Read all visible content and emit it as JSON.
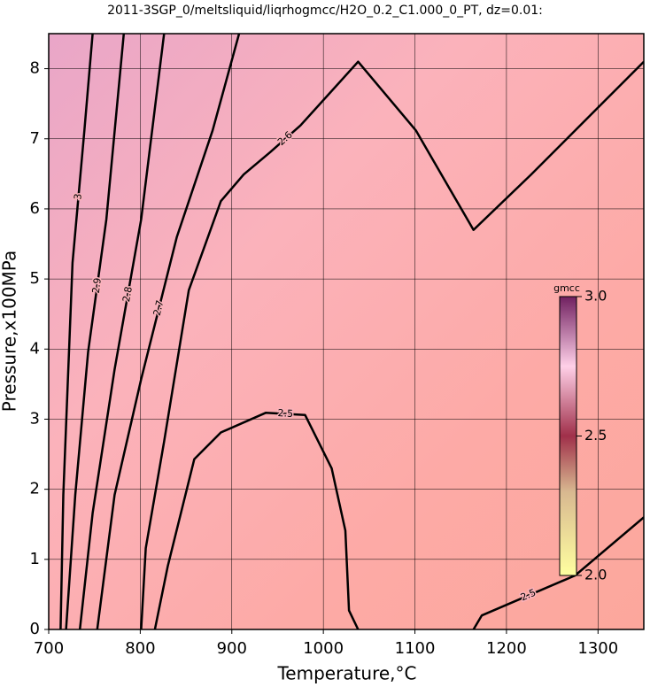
{
  "chart_data": {
    "type": "contour",
    "title": "2011-3SGP_0/meltsliquid/liqrhogmcc/H2O_0.2_C1.000_0_PT, dz=0.01:",
    "xlabel": "Temperature,°C",
    "ylabel": "Pressure,x100MPa",
    "xlim": [
      700,
      1350
    ],
    "ylim": [
      0,
      8.5
    ],
    "xticks": [
      700,
      800,
      900,
      1000,
      1100,
      1200,
      1300
    ],
    "yticks": [
      0,
      1,
      2,
      3,
      4,
      5,
      6,
      7,
      8
    ],
    "grid": true,
    "series": [
      {
        "name": "2.5",
        "color": "#000000",
        "x": [
          816,
          830,
          859,
          888,
          937,
          980,
          1009,
          1024,
          1028,
          1038
        ],
        "y": [
          0,
          0.9,
          2.43,
          2.81,
          3.09,
          3.06,
          2.3,
          1.41,
          0.27,
          0
        ]
      },
      {
        "name": "2.5",
        "color": "#000000",
        "x": [
          1164,
          1173,
          1275,
          1350
        ],
        "y": [
          0,
          0.2,
          0.77,
          1.6
        ]
      },
      {
        "name": "2.6",
        "color": "#000000",
        "x": [
          801,
          806,
          826,
          853,
          888,
          913,
          942,
          975,
          1038,
          1101,
          1164,
          1227,
          1350
        ],
        "y": [
          0,
          1.16,
          2.68,
          4.84,
          6.11,
          6.49,
          6.81,
          7.19,
          8.1,
          7.12,
          5.7,
          6.49,
          8.1
        ]
      },
      {
        "name": "2.7",
        "color": "#000000",
        "x": [
          753,
          772,
          801,
          840,
          879,
          908
        ],
        "y": [
          0,
          1.92,
          3.57,
          5.6,
          7.12,
          8.5
        ]
      },
      {
        "name": "2.8",
        "color": "#000000",
        "x": [
          734,
          748,
          772,
          801,
          826
        ],
        "y": [
          0,
          1.66,
          3.71,
          5.85,
          8.5
        ]
      },
      {
        "name": "2.9",
        "color": "#000000",
        "x": [
          719,
          729,
          743,
          763,
          782
        ],
        "y": [
          0,
          1.92,
          3.96,
          5.85,
          8.5
        ]
      },
      {
        "name": "3",
        "color": "#000000",
        "x": [
          713,
          716,
          726,
          739,
          748
        ],
        "y": [
          0,
          1.92,
          5.23,
          7.12,
          8.5
        ]
      }
    ],
    "colorbar": {
      "label": "gmcc",
      "lim": [
        2.0,
        3.0
      ],
      "ticks": [
        {
          "value": 2.0,
          "label": "2.0"
        },
        {
          "value": 2.5,
          "label": "2.5"
        },
        {
          "value": 3.0,
          "label": "3.0"
        }
      ]
    }
  }
}
